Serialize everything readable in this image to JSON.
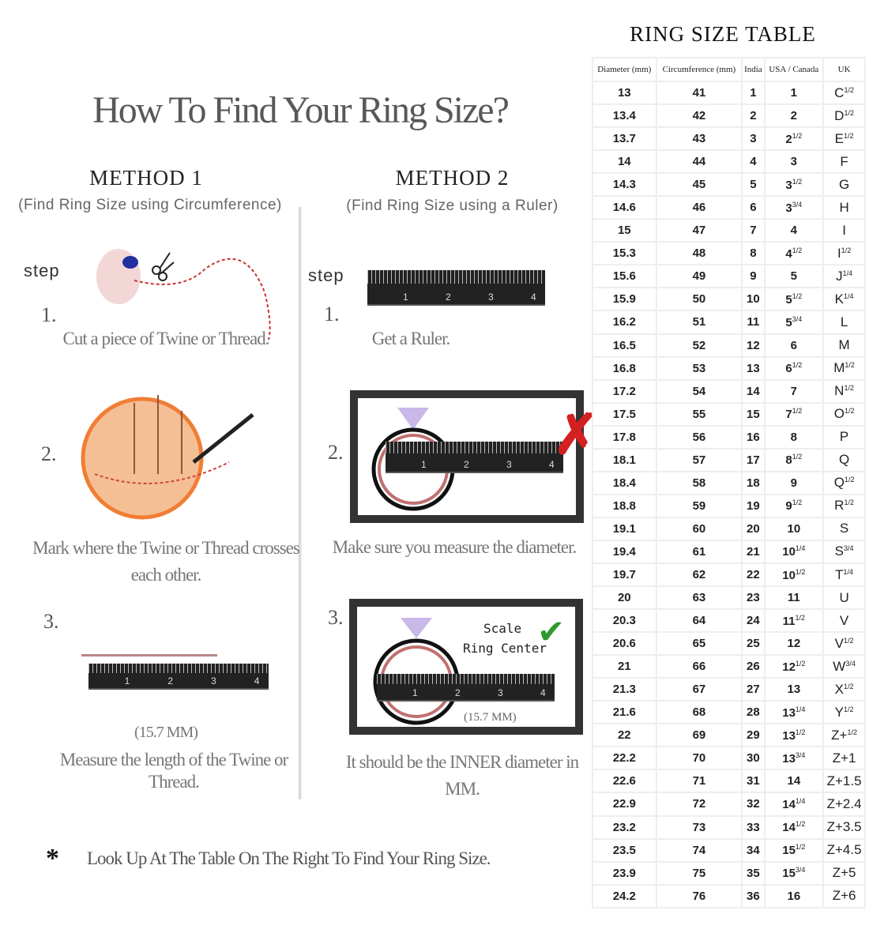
{
  "title": "How To Find Your Ring Size?",
  "method1": {
    "heading": "METHOD 1",
    "subtitle": "(Find Ring Size using Circumference)",
    "step_label": "step",
    "steps": [
      {
        "num": "1.",
        "text": "Cut a piece of  Twine or Thread."
      },
      {
        "num": "2.",
        "text": "Mark where the Twine or Thread crosses each other."
      },
      {
        "num": "3.",
        "measure": "(15.7 MM)",
        "text": "Measure the length of the Twine or Thread."
      }
    ]
  },
  "method2": {
    "heading": "METHOD 2",
    "subtitle": "(Find Ring Size using a Ruler)",
    "step_label": "step",
    "steps": [
      {
        "num": "1.",
        "text": "Get a Ruler."
      },
      {
        "num": "2.",
        "text": "Make sure you measure the diameter."
      },
      {
        "num": "3.",
        "scale": "Scale",
        "center": "Ring Center",
        "measure": "(15.7 MM)",
        "text": "It should be the INNER diameter in MM."
      }
    ]
  },
  "ruler_ticks": [
    "1",
    "2",
    "3",
    "4"
  ],
  "note": {
    "symbol": "*",
    "text": "Look Up  At The Table On The Right To Find Your Ring Size."
  },
  "table": {
    "title": "RING SIZE TABLE",
    "headers": [
      "Diameter (mm)",
      "Circumference (mm)",
      "India",
      "USA / Canada",
      "UK"
    ],
    "rows": [
      [
        "13",
        "41",
        "1",
        "1",
        "",
        "C",
        "1/2"
      ],
      [
        "13.4",
        "42",
        "2",
        "2",
        "",
        "D",
        "1/2"
      ],
      [
        "13.7",
        "43",
        "3",
        "2",
        "1/2",
        "E",
        "1/2"
      ],
      [
        "14",
        "44",
        "4",
        "3",
        "",
        "F",
        ""
      ],
      [
        "14.3",
        "45",
        "5",
        "3",
        "1/2",
        "G",
        ""
      ],
      [
        "14.6",
        "46",
        "6",
        "3",
        "3/4",
        "H",
        ""
      ],
      [
        "15",
        "47",
        "7",
        "4",
        "",
        "I",
        ""
      ],
      [
        "15.3",
        "48",
        "8",
        "4",
        "1/2",
        "I",
        "1/2"
      ],
      [
        "15.6",
        "49",
        "9",
        "5",
        "",
        "J",
        "1/4"
      ],
      [
        "15.9",
        "50",
        "10",
        "5",
        "1/2",
        "K",
        "1/4"
      ],
      [
        "16.2",
        "51",
        "11",
        "5",
        "3/4",
        "L",
        ""
      ],
      [
        "16.5",
        "52",
        "12",
        "6",
        "",
        "M",
        ""
      ],
      [
        "16.8",
        "53",
        "13",
        "6",
        "1/2",
        "M",
        "1/2"
      ],
      [
        "17.2",
        "54",
        "14",
        "7",
        "",
        "N",
        "1/2"
      ],
      [
        "17.5",
        "55",
        "15",
        "7",
        "1/2",
        "O",
        "1/2"
      ],
      [
        "17.8",
        "56",
        "16",
        "8",
        "",
        "P",
        ""
      ],
      [
        "18.1",
        "57",
        "17",
        "8",
        "1/2",
        "Q",
        ""
      ],
      [
        "18.4",
        "58",
        "18",
        "9",
        "",
        "Q",
        "1/2"
      ],
      [
        "18.8",
        "59",
        "19",
        "9",
        "1/2",
        "R",
        "1/2"
      ],
      [
        "19.1",
        "60",
        "20",
        "10",
        "",
        "S",
        ""
      ],
      [
        "19.4",
        "61",
        "21",
        "10",
        "1/4",
        "S",
        "3/4"
      ],
      [
        "19.7",
        "62",
        "22",
        "10",
        "1/2",
        "T",
        "1/4"
      ],
      [
        "20",
        "63",
        "23",
        "11",
        "",
        "U",
        ""
      ],
      [
        "20.3",
        "64",
        "24",
        "11",
        "1/2",
        "V",
        ""
      ],
      [
        "20.6",
        "65",
        "25",
        "12",
        "",
        "V",
        "1/2"
      ],
      [
        "21",
        "66",
        "26",
        "12",
        "1/2",
        "W",
        "3/4"
      ],
      [
        "21.3",
        "67",
        "27",
        "13",
        "",
        "X",
        "1/2"
      ],
      [
        "21.6",
        "68",
        "28",
        "13",
        "1/4",
        "Y",
        "1/2"
      ],
      [
        "22",
        "69",
        "29",
        "13",
        "1/2",
        "Z+",
        "1/2"
      ],
      [
        "22.2",
        "70",
        "30",
        "13",
        "3/4",
        "Z+1",
        ""
      ],
      [
        "22.6",
        "71",
        "31",
        "14",
        "",
        "Z+1.5",
        ""
      ],
      [
        "22.9",
        "72",
        "32",
        "14",
        "1/4",
        "Z+2.4",
        ""
      ],
      [
        "23.2",
        "73",
        "33",
        "14",
        "1/2",
        "Z+3.5",
        ""
      ],
      [
        "23.5",
        "74",
        "34",
        "15",
        "1/2",
        "Z+4.5",
        ""
      ],
      [
        "23.9",
        "75",
        "35",
        "15",
        "3/4",
        "Z+5",
        ""
      ],
      [
        "24.2",
        "76",
        "36",
        "16",
        "",
        "Z+6",
        ""
      ]
    ]
  },
  "colors": {
    "wrong_mark": "#d42020",
    "check_mark": "#2e9a2e",
    "ring_outer": "#111111",
    "ring_inner": "#c07070",
    "diamond": "#c9b8e8",
    "hand": "#f4b98a",
    "circle": "#f07020"
  }
}
